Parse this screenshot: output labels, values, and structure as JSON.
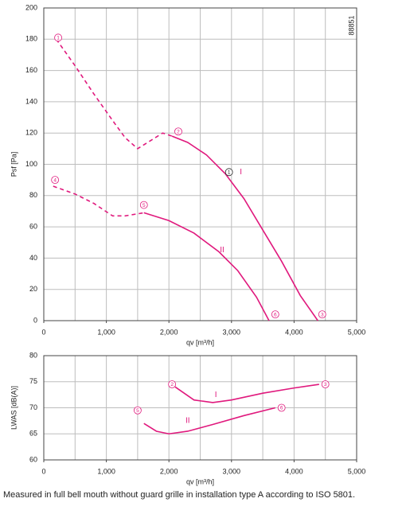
{
  "chart_data": [
    {
      "type": "line",
      "xlabel": "qv [m³/h]",
      "ylabel": "Psf [Pa]",
      "code": "88851",
      "xlim": [
        0,
        5000
      ],
      "ylim": [
        0,
        200
      ],
      "xticks": [
        0,
        {
          "value": 1000,
          "label": "1,000"
        },
        {
          "value": 2000,
          "label": "2,000"
        },
        {
          "value": 3000,
          "label": "3,000"
        },
        {
          "value": 4000,
          "label": "4,000"
        },
        {
          "value": 5000,
          "label": "5,000"
        }
      ],
      "xgrid": [
        0,
        500,
        1000,
        1500,
        2000,
        2500,
        3000,
        3500,
        4000,
        4500,
        5000
      ],
      "yticks": [
        0,
        20,
        40,
        60,
        80,
        100,
        120,
        140,
        160,
        180,
        200
      ],
      "series": [
        {
          "color": "#e0197d",
          "dashed": true,
          "x": [
            200,
            500,
            800,
            1100,
            1300,
            1500,
            1700,
            1900,
            2050
          ],
          "values": [
            180,
            163,
            145,
            128,
            117,
            110,
            115,
            120,
            118
          ]
        },
        {
          "name": "I",
          "color": "#e0197d",
          "dashed": false,
          "x": [
            2050,
            2300,
            2600,
            2900,
            3200,
            3500,
            3800,
            4100,
            4380
          ],
          "values": [
            118,
            114,
            106,
            94,
            78,
            58,
            38,
            16,
            0
          ]
        },
        {
          "color": "#e0197d",
          "dashed": true,
          "x": [
            150,
            500,
            800,
            1100,
            1300,
            1600
          ],
          "values": [
            86,
            81,
            75,
            67,
            67,
            69
          ]
        },
        {
          "name": "II",
          "color": "#e0197d",
          "dashed": false,
          "x": [
            1600,
            2000,
            2400,
            2800,
            3100,
            3400,
            3600
          ],
          "values": [
            69,
            64,
            56,
            44,
            32,
            15,
            0
          ]
        }
      ],
      "series_labels": [
        {
          "series": 1,
          "x": 3150,
          "y": 95
        },
        {
          "series": 3,
          "x": 2850,
          "y": 45
        }
      ],
      "annotations": [
        {
          "text": "1",
          "x": 230,
          "y": 181,
          "color": "#e0197d"
        },
        {
          "text": "2",
          "x": 2150,
          "y": 121,
          "color": "#e0197d"
        },
        {
          "text": "3",
          "x": 4450,
          "y": 4,
          "color": "#e0197d"
        },
        {
          "text": "4",
          "x": 180,
          "y": 90,
          "color": "#e0197d"
        },
        {
          "text": "5",
          "x": 1600,
          "y": 74,
          "color": "#e0197d"
        },
        {
          "text": "6",
          "x": 3700,
          "y": 4,
          "color": "#e0197d"
        },
        {
          "text": "1",
          "x": 2960,
          "y": 95,
          "color": "#222"
        }
      ]
    },
    {
      "type": "line",
      "xlabel": "qv [m³/h]",
      "ylabel": "LWAS [dB(A)]",
      "xlim": [
        0,
        5000
      ],
      "ylim": [
        60,
        80
      ],
      "xticks": [
        0,
        {
          "value": 1000,
          "label": "1,000"
        },
        {
          "value": 2000,
          "label": "2,000"
        },
        {
          "value": 3000,
          "label": "3,000"
        },
        {
          "value": 4000,
          "label": "4,000"
        },
        {
          "value": 5000,
          "label": "5,000"
        }
      ],
      "xgrid": [
        0,
        500,
        1000,
        1500,
        2000,
        2500,
        3000,
        3500,
        4000,
        4500,
        5000
      ],
      "yticks": [
        60,
        65,
        70,
        75,
        80
      ],
      "series": [
        {
          "name": "I",
          "color": "#e0197d",
          "dashed": false,
          "x": [
            2100,
            2400,
            2700,
            3000,
            3500,
            4000,
            4400
          ],
          "values": [
            74,
            71.5,
            71,
            71.5,
            72.8,
            73.8,
            74.5
          ]
        },
        {
          "name": "II",
          "color": "#e0197d",
          "dashed": false,
          "x": [
            1600,
            1800,
            2000,
            2300,
            2700,
            3200,
            3700
          ],
          "values": [
            67,
            65.5,
            65,
            65.5,
            66.8,
            68.5,
            70
          ]
        }
      ],
      "series_labels": [
        {
          "series": 0,
          "x": 2750,
          "y": 72.5
        },
        {
          "series": 1,
          "x": 2300,
          "y": 67.5
        }
      ],
      "annotations": [
        {
          "text": "2",
          "x": 2050,
          "y": 74.5,
          "color": "#e0197d"
        },
        {
          "text": "3",
          "x": 4500,
          "y": 74.5,
          "color": "#e0197d"
        },
        {
          "text": "5",
          "x": 1500,
          "y": 69.5,
          "color": "#e0197d"
        },
        {
          "text": "6",
          "x": 3800,
          "y": 70,
          "color": "#e0197d"
        }
      ]
    }
  ],
  "caption": "Measured in full bell mouth without guard grille in installation type A according to ISO 5801."
}
